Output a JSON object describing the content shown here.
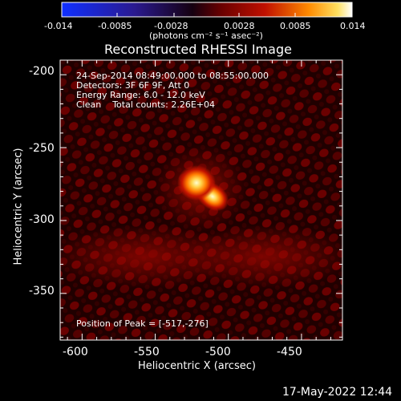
{
  "colorbar": {
    "tick_labels": [
      "-0.014",
      "-0.0085",
      "-0.0028",
      "0.0028",
      "0.0085",
      "0.014"
    ],
    "units_label": "(photons cm⁻² s⁻¹ asec⁻²)"
  },
  "plot": {
    "title": "Reconstructed RHESSI Image",
    "info_lines": [
      "24-Sep-2014 08:49:00.000 to 08:55:00.000",
      "Detectors: 3F 6F 9F, Att 0",
      "Energy Range: 6.0 - 12.0 keV",
      "Clean    Total counts: 2.26E+04"
    ],
    "peak_label": "Position of Peak = [-517,-276]",
    "xlabel": "Heliocentric X (arcsec)",
    "ylabel": "Heliocentric Y (arcsec)",
    "x_ticks": [
      "-600",
      "-550",
      "-500",
      "-450"
    ],
    "y_ticks": [
      "-200",
      "-250",
      "-300",
      "-350"
    ]
  },
  "footer": {
    "date": "17-May-2022 12:44"
  },
  "image_data": {
    "type": "heatmap",
    "colormap": "thermal (blue-black-red-yellow-white)",
    "x_range": [
      -615,
      -422
    ],
    "y_range": [
      -382,
      -190
    ],
    "peak_position": [
      -517,
      -276
    ],
    "vmin": -0.014,
    "vmax": 0.014
  }
}
